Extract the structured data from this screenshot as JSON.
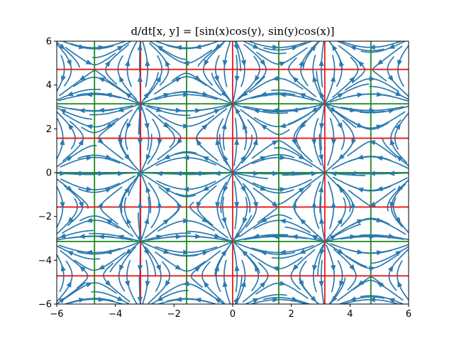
{
  "chart_data": {
    "type": "streamplot",
    "title": "d/dt[x, y] = [sin(x)cos(y), sin(y)cos(x)]",
    "xlabel": "",
    "ylabel": "",
    "xlim": [
      -6,
      6
    ],
    "ylim": [
      -6,
      6
    ],
    "x_ticks": [
      -6,
      -4,
      -2,
      0,
      2,
      4,
      6
    ],
    "y_ticks": [
      -6,
      -4,
      -2,
      0,
      2,
      4,
      6
    ],
    "x_tick_labels": [
      "−6",
      "−4",
      "−2",
      "0",
      "2",
      "4",
      "6"
    ],
    "y_tick_labels": [
      "−6",
      "−4",
      "−2",
      "0",
      "2",
      "4",
      "6"
    ],
    "grid": false,
    "field": {
      "dx": "sin(x)*cos(y)",
      "dy": "sin(y)*cos(x)"
    },
    "red_lines_x": [
      -3.14159,
      0,
      3.14159
    ],
    "red_lines_y": [
      -4.71239,
      -1.5708,
      1.5708,
      4.71239
    ],
    "green_lines_x": [
      -4.71239,
      -1.5708,
      1.5708,
      4.71239
    ],
    "green_lines_y": [
      -3.14159,
      0,
      3.14159
    ],
    "colors": {
      "stream": "#2a7ab0",
      "red_line": "#e31a1c",
      "green_line": "#1a8a1a",
      "axes": "#000000"
    }
  }
}
